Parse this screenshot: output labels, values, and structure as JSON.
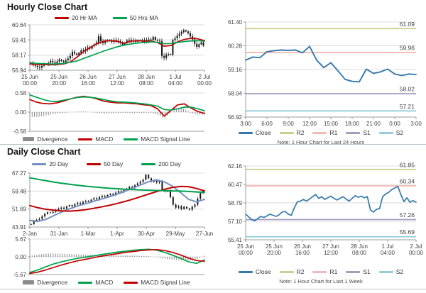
{
  "panels": {
    "hourly": {
      "title": "Hourly Close Chart"
    },
    "daily": {
      "title": "Daily Close Chart"
    },
    "pivot24": {
      "note": "Note: 1 Hour Chart for Last 24 Hours"
    },
    "pivotweek": {
      "note": "Note: 1 Hour Chart for Last 1 Week"
    }
  },
  "colors": {
    "red": "#C00000",
    "green": "#00A14E",
    "blue20": "#7590C2",
    "close": "#3578AB",
    "r2": "#CCCF90",
    "r1": "#F2BAB6",
    "s1": "#A49DBE",
    "s2": "#93CFDA",
    "divergence": "#8C8C8C",
    "candle": "#151515"
  },
  "legends": {
    "hourly_price": [
      {
        "label": "20 Hr MA",
        "color": "#C00000"
      },
      {
        "label": "50 Hrs MA",
        "color": "#00A14E"
      }
    ],
    "hourly_macd": [
      {
        "label": "Divergence",
        "color": "#8C8C8C",
        "shape": "bar"
      },
      {
        "label": "MACD",
        "color": "#C00000"
      },
      {
        "label": "MACD Signal Line",
        "color": "#00A14E"
      }
    ],
    "pivot24": [
      {
        "label": "Close",
        "color": "#3578AB"
      },
      {
        "label": "R2",
        "color": "#CCCF90"
      },
      {
        "label": "R1",
        "color": "#F2BAB6"
      },
      {
        "label": "S1",
        "color": "#A49DBE"
      },
      {
        "label": "S2",
        "color": "#93CFDA"
      }
    ],
    "daily_price": [
      {
        "label": "20 Day",
        "color": "#7590C2"
      },
      {
        "label": "50 Day",
        "color": "#C00000"
      },
      {
        "label": "200 Day",
        "color": "#00A14E"
      }
    ],
    "daily_macd": [
      {
        "label": "Divergence",
        "color": "#8C8C8C",
        "shape": "bar"
      },
      {
        "label": "MACD",
        "color": "#00A14E"
      },
      {
        "label": "MACD Signal Line",
        "color": "#C00000"
      }
    ],
    "pivotweek": [
      {
        "label": "Close",
        "color": "#3578AB"
      },
      {
        "label": "R2",
        "color": "#CCCF90"
      },
      {
        "label": "R1",
        "color": "#F2BAB6"
      },
      {
        "label": "S1",
        "color": "#A49DBE"
      },
      {
        "label": "S2",
        "color": "#93CFDA"
      }
    ]
  },
  "chart_data": [
    {
      "id": "hourly_price",
      "type": "candlestick",
      "title": "Hourly Close Chart",
      "ylim": [
        56.94,
        60.64
      ],
      "yticks": [
        60.64,
        59.41,
        58.17,
        56.94
      ],
      "xlabels": [
        [
          "25 Jun",
          "00:00"
        ],
        [
          "25 Jun",
          "20:00"
        ],
        [
          "26 Jun",
          "16:00"
        ],
        [
          "27 Jun",
          "12:00"
        ],
        [
          "28 Jun",
          "08:00"
        ],
        [
          "1 Jul",
          "04:00"
        ],
        [
          "2 Jul",
          "00:00"
        ]
      ],
      "series": [
        {
          "name": "Close",
          "type": "candles",
          "color": "#151515",
          "values": [
            57.55,
            57.35,
            57.3,
            57.2,
            57.15,
            57.3,
            57.45,
            57.4,
            57.55,
            57.7,
            57.6,
            57.5,
            57.65,
            57.8,
            57.7,
            57.6,
            57.75,
            57.9,
            58.1,
            58.45,
            58.3,
            58.2,
            58.35,
            58.55,
            58.5,
            58.65,
            58.8,
            58.7,
            58.9,
            59.05,
            59.2,
            59.7,
            59.3,
            59.15,
            59.3,
            59.4,
            59.35,
            59.25,
            59.4,
            59.35,
            59.3,
            59.2,
            59.0,
            59.15,
            59.35,
            59.4,
            59.3,
            59.35,
            59.25,
            59.35,
            59.4,
            59.3,
            59.4,
            59.35,
            59.45,
            59.4,
            59.65,
            59.4,
            59.35,
            59.3,
            58.1,
            57.95,
            58.2,
            58.25,
            58.2,
            59.4,
            59.55,
            59.75,
            59.9,
            60.05,
            60.2,
            60.1,
            59.95,
            59.7,
            59.45,
            59.1,
            58.85,
            59.05,
            59.2,
            58.95
          ]
        },
        {
          "name": "20 Hr MA",
          "type": "line",
          "color": "#C00000",
          "values": [
            57.45,
            57.42,
            57.4,
            57.38,
            57.4,
            57.45,
            57.6,
            58.0,
            58.45,
            58.8,
            59.1,
            59.3,
            59.35,
            59.3,
            59.15,
            59.3,
            59.35,
            59.3,
            59.32,
            59.2,
            58.9,
            58.95,
            59.25,
            59.45,
            59.55,
            59.5,
            59.35
          ]
        },
        {
          "name": "50 Hrs MA",
          "type": "line",
          "color": "#00A14E",
          "values": [
            57.55,
            57.5,
            57.48,
            57.45,
            57.45,
            57.5,
            57.58,
            57.7,
            57.9,
            58.1,
            58.3,
            58.5,
            58.68,
            58.85,
            58.98,
            59.08,
            59.15,
            59.2,
            59.25,
            59.22,
            59.1,
            59.12,
            59.2,
            59.28,
            59.33,
            59.35,
            59.3
          ]
        }
      ]
    },
    {
      "id": "hourly_macd",
      "type": "line",
      "title": "Hourly MACD",
      "ylim": [
        -0.58,
        0.58
      ],
      "yticks": [
        0.58,
        0.0,
        -0.58
      ],
      "xlabels": [],
      "series": [
        {
          "name": "Divergence",
          "type": "bars",
          "color": "#8C8C8C",
          "values": [
            -0.14,
            -0.15,
            -0.12,
            -0.08,
            -0.04,
            -0.03,
            0.0,
            0.01,
            0.02,
            0.0,
            -0.02,
            -0.05,
            -0.04,
            -0.03,
            -0.02,
            -0.03,
            -0.02,
            -0.03,
            -0.02,
            -0.08,
            -0.2,
            -0.01,
            0.12,
            0.1,
            -0.03,
            -0.08,
            -0.08
          ]
        },
        {
          "name": "MACD",
          "type": "line",
          "color": "#C00000",
          "values": [
            0.38,
            0.3,
            0.26,
            0.25,
            0.28,
            0.33,
            0.4,
            0.45,
            0.48,
            0.45,
            0.4,
            0.33,
            0.3,
            0.28,
            0.28,
            0.26,
            0.25,
            0.22,
            0.2,
            0.1,
            -0.12,
            0.05,
            0.22,
            0.25,
            0.12,
            0.02,
            -0.04
          ]
        },
        {
          "name": "MACD Signal Line",
          "type": "line",
          "color": "#00A14E",
          "values": [
            0.52,
            0.45,
            0.38,
            0.33,
            0.32,
            0.36,
            0.4,
            0.44,
            0.46,
            0.45,
            0.42,
            0.38,
            0.34,
            0.31,
            0.3,
            0.29,
            0.27,
            0.25,
            0.22,
            0.18,
            0.08,
            0.06,
            0.1,
            0.15,
            0.15,
            0.1,
            0.04
          ]
        }
      ]
    },
    {
      "id": "pivot24",
      "type": "line",
      "title": "1 Hour Chart for Last 24 Hours",
      "ylim": [
        56.92,
        61.4
      ],
      "yticks": [
        61.4,
        60.28,
        59.16,
        58.04,
        56.92
      ],
      "xlabels": [
        "3:00",
        "6:00",
        "9:00",
        "12:00",
        "15:00",
        "18:00",
        "21:00",
        "0:00",
        "3:00"
      ],
      "series": [
        {
          "name": "R2",
          "type": "hline",
          "value": 61.09,
          "color": "#CCCF90"
        },
        {
          "name": "R1",
          "type": "hline",
          "value": 59.96,
          "color": "#F2BAB6"
        },
        {
          "name": "S1",
          "type": "hline",
          "value": 58.02,
          "color": "#A49DBE"
        },
        {
          "name": "S2",
          "type": "hline",
          "value": 57.21,
          "color": "#93CFDA"
        },
        {
          "name": "Close",
          "type": "line",
          "color": "#3578AB",
          "w": 1.9,
          "values": [
            59.6,
            59.75,
            59.72,
            60.0,
            60.05,
            60.08,
            60.06,
            60.08,
            59.95,
            60.25,
            59.6,
            59.25,
            59.48,
            59.1,
            58.7,
            58.6,
            58.58,
            59.18,
            58.98,
            59.05,
            59.18,
            58.95,
            58.88,
            58.95,
            58.92
          ]
        }
      ]
    },
    {
      "id": "daily_price",
      "type": "candlestick",
      "title": "Daily Close Chart",
      "ylim": [
        43.91,
        67.27
      ],
      "yticks": [
        67.27,
        59.48,
        51.69,
        43.91
      ],
      "xlabels": [
        "2-Jan",
        "31-Jan",
        "1-Mar",
        "1-Apr",
        "30-Apr",
        "29-May",
        "27-Jun"
      ],
      "series": [
        {
          "name": "Close",
          "type": "candles",
          "color": "#151515",
          "wick": 3,
          "values": [
            45.2,
            46.6,
            47.0,
            47.4,
            48.5,
            49.6,
            50.3,
            50.0,
            50.5,
            51.2,
            51.8,
            52.3,
            51.9,
            52.8,
            53.4,
            52.9,
            53.8,
            54.4,
            53.9,
            54.8,
            55.3,
            55.0,
            55.8,
            56.4,
            56.0,
            56.8,
            57.4,
            57.0,
            57.8,
            58.3,
            57.9,
            58.8,
            59.4,
            59.0,
            59.9,
            60.6,
            61.4,
            61.0,
            62.0,
            62.8,
            63.5,
            64.4,
            66.6,
            65.0,
            63.6,
            64.0,
            63.2,
            63.8,
            60.0,
            59.2,
            59.8,
            56.8,
            53.6,
            52.3,
            52.9,
            51.7,
            52.7,
            51.9,
            51.4,
            52.7,
            53.6,
            56.2,
            58.6,
            59.4
          ]
        },
        {
          "name": "20 Day",
          "type": "line",
          "color": "#7590C2",
          "w": 2,
          "values": [
            46.8,
            46.3,
            47.2,
            48.8,
            50.4,
            51.8,
            53.0,
            54.0,
            55.0,
            56.0,
            57.0,
            58.2,
            59.4,
            60.8,
            62.2,
            63.6,
            64.3,
            63.4,
            61.5,
            58.8,
            55.9,
            54.8,
            55.9
          ]
        },
        {
          "name": "50 Day",
          "type": "line",
          "color": "#C00000",
          "w": 2,
          "values": [
            53.2,
            52.3,
            51.6,
            51.2,
            50.9,
            50.8,
            51.0,
            51.4,
            52.0,
            52.6,
            53.3,
            54.1,
            55.0,
            56.0,
            57.1,
            58.2,
            59.3,
            60.3,
            61.1,
            61.5,
            61.4,
            60.6,
            59.6
          ]
        },
        {
          "name": "200 Day",
          "type": "line",
          "color": "#00A14E",
          "w": 2,
          "values": [
            65.2,
            64.6,
            64.0,
            63.4,
            62.9,
            62.4,
            62.0,
            61.6,
            61.3,
            61.0,
            60.7,
            60.5,
            60.3,
            60.1,
            59.95,
            59.85,
            59.75,
            59.65,
            59.55,
            59.45,
            59.3,
            59.1,
            58.9
          ]
        }
      ]
    },
    {
      "id": "daily_macd",
      "type": "line",
      "title": "Daily MACD",
      "ylim": [
        -5.67,
        5.67
      ],
      "yticks": [
        5.67,
        0.0,
        -5.67
      ],
      "xlabels": [],
      "series": [
        {
          "name": "Divergence",
          "type": "bars",
          "color": "#8C8C8C",
          "values": [
            0.3,
            0.7,
            1.0,
            1.1,
            1.0,
            0.9,
            0.8,
            0.7,
            0.6,
            0.5,
            0.5,
            0.5,
            0.4,
            0.4,
            0.3,
            0.2,
            -0.2,
            -0.6,
            -0.9,
            -1.1,
            -1.2,
            -0.9,
            0.4
          ]
        },
        {
          "name": "MACD",
          "type": "line",
          "color": "#00A14E",
          "values": [
            -5.0,
            -4.2,
            -3.2,
            -2.3,
            -1.6,
            -1.0,
            -0.5,
            -0.1,
            0.3,
            0.7,
            1.1,
            1.5,
            1.8,
            2.1,
            2.3,
            2.4,
            2.1,
            1.4,
            0.5,
            -0.5,
            -1.6,
            -2.1,
            -1.0
          ]
        },
        {
          "name": "MACD Signal Line",
          "type": "line",
          "color": "#C00000",
          "values": [
            -5.3,
            -4.9,
            -4.2,
            -3.4,
            -2.6,
            -1.9,
            -1.3,
            -0.8,
            -0.3,
            0.2,
            0.6,
            1.0,
            1.4,
            1.7,
            2.0,
            2.2,
            2.3,
            2.0,
            1.4,
            0.6,
            -0.4,
            -1.2,
            -1.4
          ]
        }
      ]
    },
    {
      "id": "pivotweek",
      "type": "line",
      "title": "1 Hour Chart for Last 1 Week",
      "ylim": [
        55.41,
        62.16
      ],
      "yticks": [
        62.16,
        60.47,
        58.79,
        57.1,
        55.41
      ],
      "xlabels": [
        [
          "25 Jun",
          "00:00"
        ],
        [
          "25 Jun",
          "20:00"
        ],
        [
          "26 Jun",
          "16:00"
        ],
        [
          "27 Jun",
          "12:00"
        ],
        [
          "28 Jun",
          "08:00"
        ],
        [
          "1 Jul",
          "04:00"
        ],
        [
          "2 Jul",
          "00:00"
        ]
      ],
      "series": [
        {
          "name": "R2",
          "type": "hline",
          "value": 61.85,
          "color": "#CCCF90"
        },
        {
          "name": "R1",
          "type": "hline",
          "value": 60.34,
          "color": "#F2BAB6"
        },
        {
          "name": "S1",
          "type": "hline",
          "value": 57.26,
          "color": "#A49DBE"
        },
        {
          "name": "S2",
          "type": "hline",
          "value": 55.69,
          "color": "#93CFDA"
        },
        {
          "name": "Close",
          "type": "line",
          "color": "#3578AB",
          "w": 1.7,
          "values": [
            57.75,
            57.5,
            57.25,
            57.15,
            57.35,
            57.55,
            57.45,
            57.6,
            57.75,
            57.65,
            57.55,
            57.7,
            57.95,
            58.0,
            57.75,
            57.65,
            58.35,
            58.9,
            58.95,
            59.1,
            58.95,
            59.15,
            59.35,
            59.55,
            59.2,
            59.35,
            59.1,
            59.25,
            59.4,
            59.2,
            59.05,
            59.2,
            59.35,
            59.15,
            58.95,
            59.2,
            59.45,
            59.3,
            59.4,
            59.25,
            59.35,
            58.15,
            57.95,
            58.2,
            58.25,
            59.35,
            59.6,
            59.75,
            60.0,
            60.15,
            60.3,
            59.55,
            58.9,
            59.25,
            58.85,
            59.0,
            58.85
          ]
        }
      ]
    }
  ]
}
